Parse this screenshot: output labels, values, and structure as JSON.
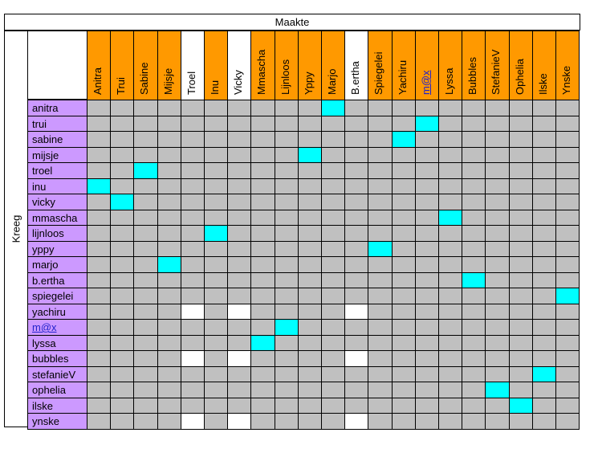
{
  "title": "Maakte",
  "side_label": "Kreeg",
  "columns": [
    {
      "label": "Anitra",
      "color": "#ff9900"
    },
    {
      "label": "Trui",
      "color": "#ff9900"
    },
    {
      "label": "Sabine",
      "color": "#ff9900"
    },
    {
      "label": "Mijsje",
      "color": "#ff9900"
    },
    {
      "label": "Troel",
      "color": "#ffffff"
    },
    {
      "label": "Inu",
      "color": "#ff9900"
    },
    {
      "label": "Vicky",
      "color": "#ffffff"
    },
    {
      "label": "Mmascha",
      "color": "#ff9900"
    },
    {
      "label": "Lijnloos",
      "color": "#ff9900"
    },
    {
      "label": "Yppy",
      "color": "#ff9900"
    },
    {
      "label": "Marjo",
      "color": "#ff9900"
    },
    {
      "label": "B.ertha",
      "color": "#ffffff"
    },
    {
      "label": "Spiegelei",
      "color": "#ff9900"
    },
    {
      "label": "Yachiru",
      "color": "#ff9900"
    },
    {
      "label": "m@x",
      "color": "#ff9900",
      "link": true
    },
    {
      "label": "Lyssa",
      "color": "#ff9900"
    },
    {
      "label": "Bubbles",
      "color": "#ff9900"
    },
    {
      "label": "StefanieV",
      "color": "#ff9900"
    },
    {
      "label": "Ophelia",
      "color": "#ff9900"
    },
    {
      "label": "Ilske",
      "color": "#ff9900"
    },
    {
      "label": "Ynske",
      "color": "#ff9900"
    }
  ],
  "rows": [
    {
      "label": "anitra"
    },
    {
      "label": "trui"
    },
    {
      "label": "sabine"
    },
    {
      "label": "mijsje"
    },
    {
      "label": "troel"
    },
    {
      "label": "inu"
    },
    {
      "label": "vicky"
    },
    {
      "label": "mmascha"
    },
    {
      "label": "lijnloos"
    },
    {
      "label": "yppy"
    },
    {
      "label": "marjo"
    },
    {
      "label": "b.ertha"
    },
    {
      "label": "spiegelei"
    },
    {
      "label": "yachiru"
    },
    {
      "label": "m@x",
      "link": true
    },
    {
      "label": "lyssa"
    },
    {
      "label": "bubbles"
    },
    {
      "label": "stefanieV"
    },
    {
      "label": "ophelia"
    },
    {
      "label": "ilske"
    },
    {
      "label": "ynske"
    }
  ],
  "matches": [
    [
      0,
      10
    ],
    [
      1,
      14
    ],
    [
      2,
      13
    ],
    [
      3,
      9
    ],
    [
      4,
      2
    ],
    [
      5,
      0
    ],
    [
      6,
      1
    ],
    [
      7,
      15
    ],
    [
      8,
      5
    ],
    [
      9,
      12
    ],
    [
      10,
      3
    ],
    [
      11,
      16
    ],
    [
      12,
      20
    ],
    [
      14,
      8
    ],
    [
      15,
      7
    ],
    [
      17,
      19
    ],
    [
      18,
      17
    ],
    [
      19,
      18
    ]
  ],
  "white_cells": [
    [
      13,
      4
    ],
    [
      13,
      6
    ],
    [
      13,
      11
    ],
    [
      16,
      4
    ],
    [
      16,
      6
    ],
    [
      16,
      11
    ],
    [
      20,
      4
    ],
    [
      20,
      6
    ],
    [
      20,
      11
    ]
  ],
  "colors": {
    "column_header": "#ff9900",
    "row_label": "#cc99ff",
    "grid_cell": "#c0c0c0",
    "match_cell": "#00ffff",
    "blank_cell": "#ffffff",
    "link_text": "#2222cc"
  }
}
